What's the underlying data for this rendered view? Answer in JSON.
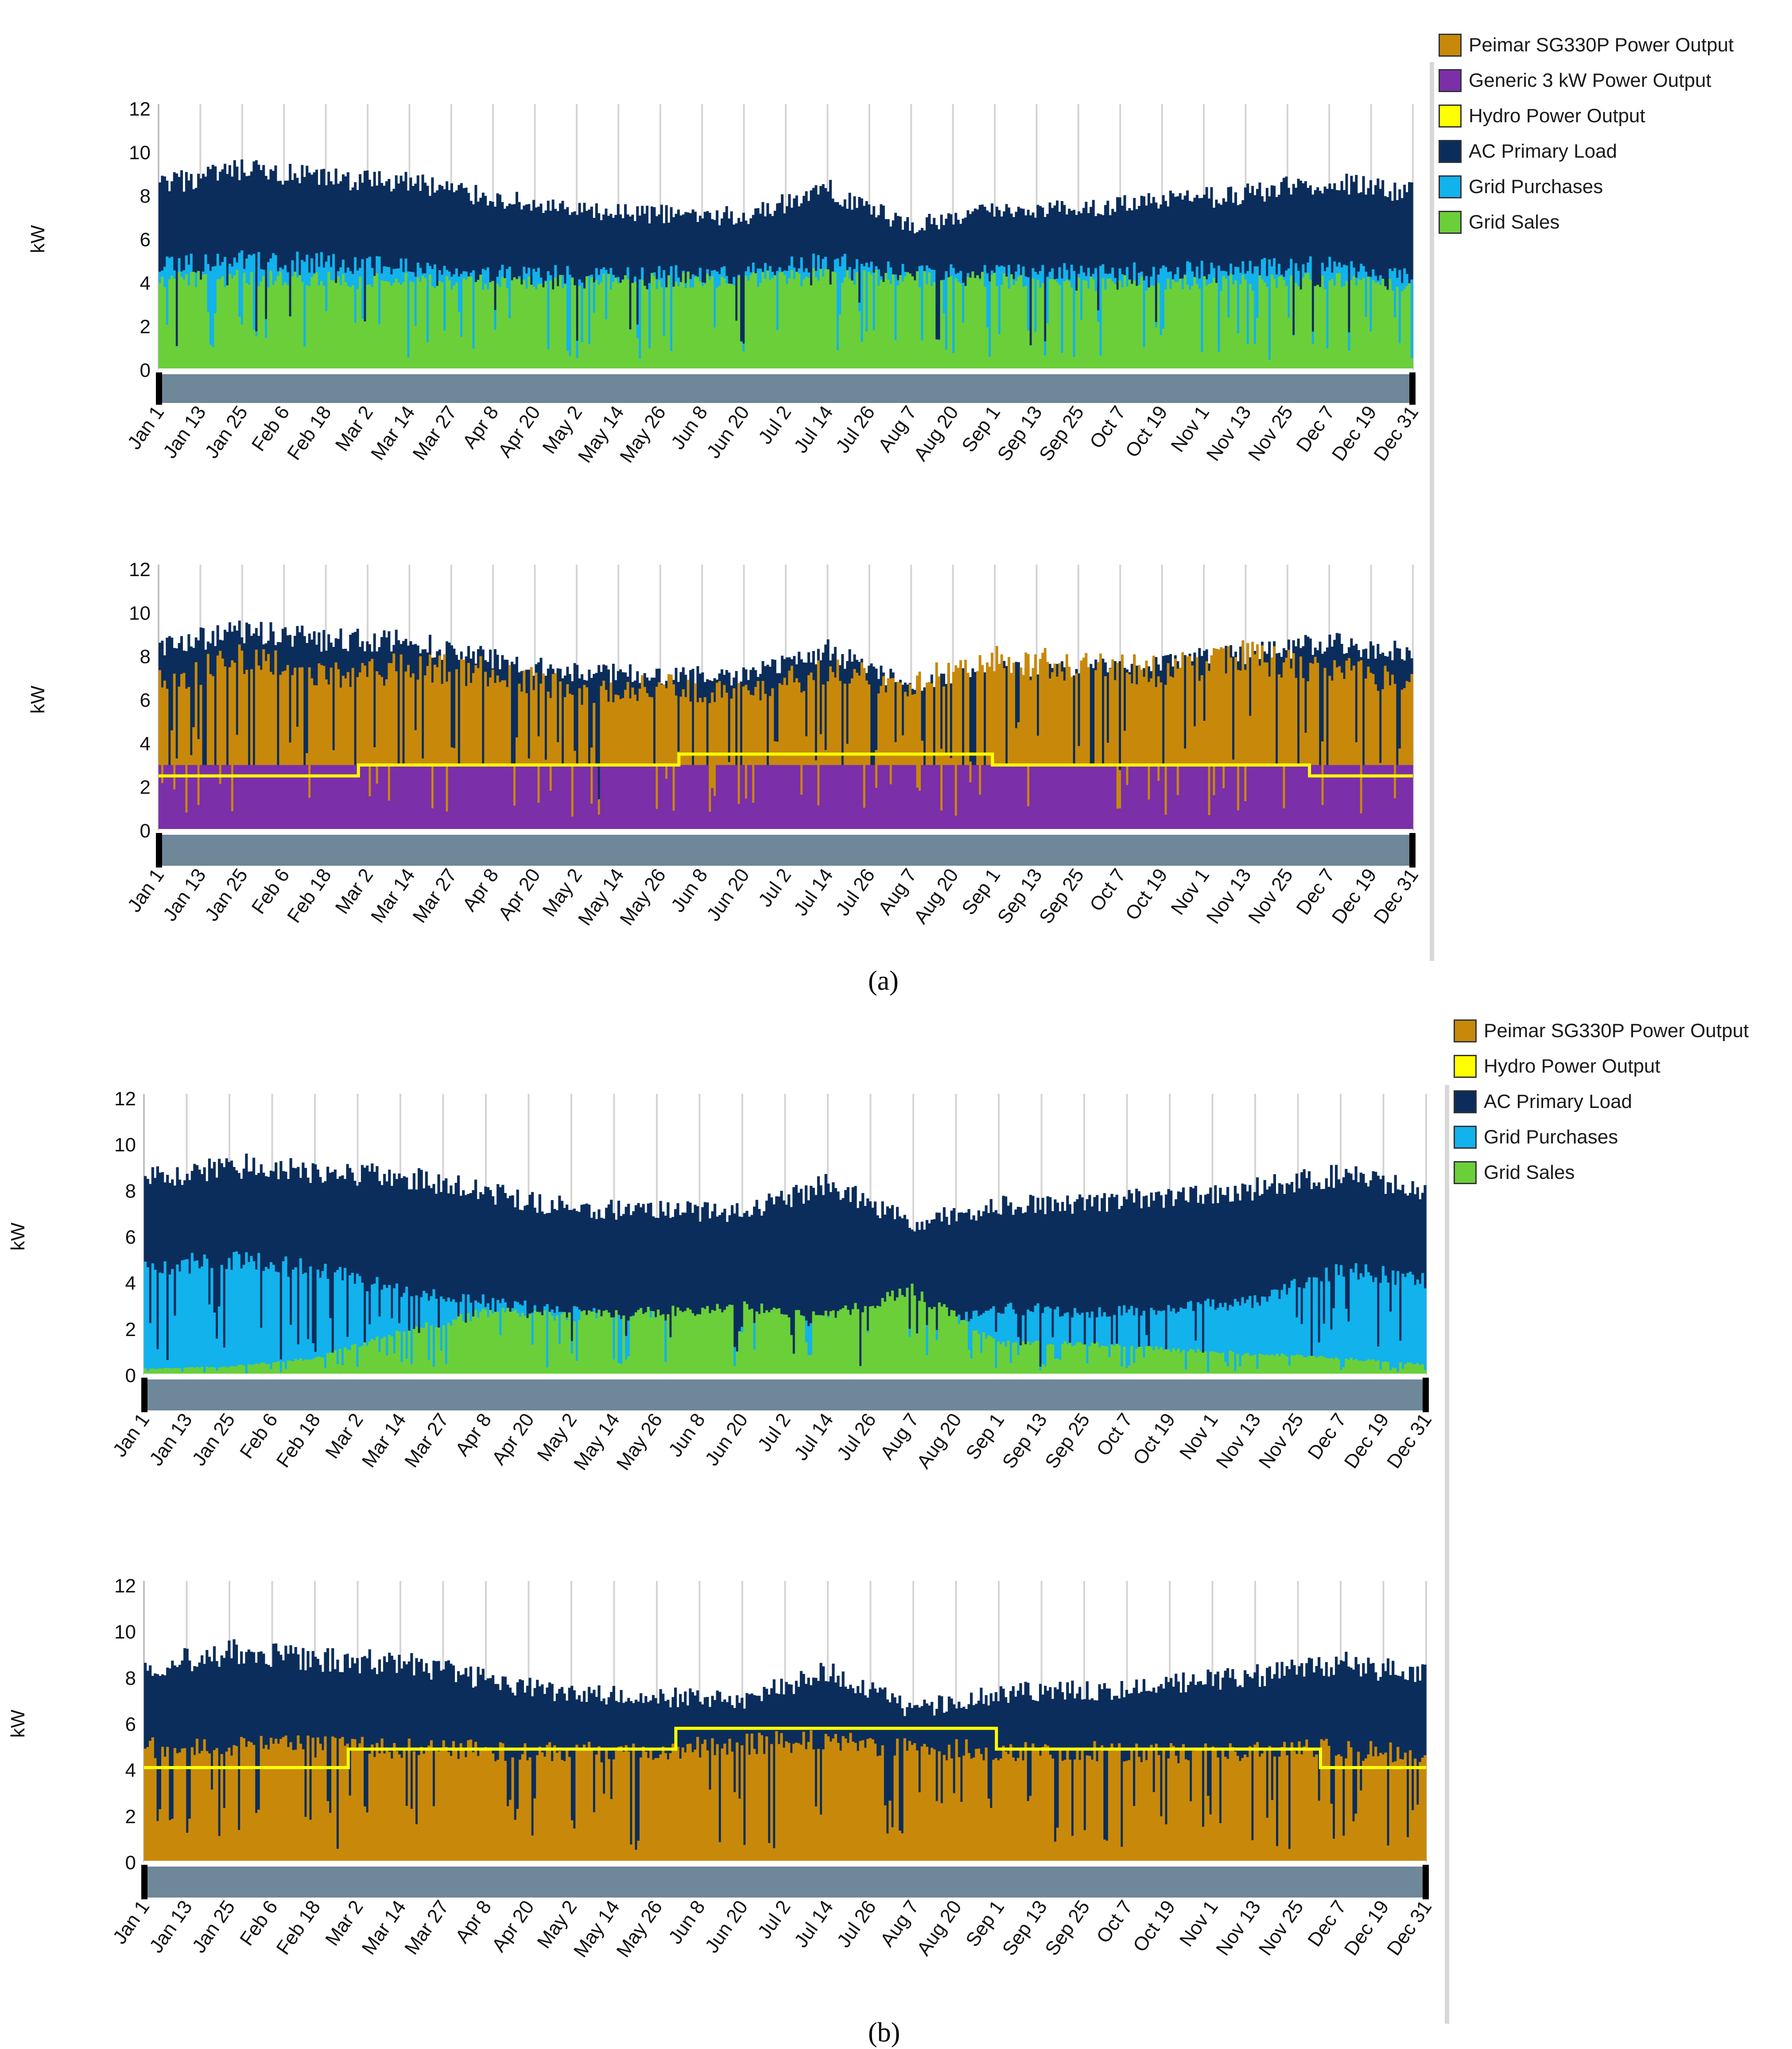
{
  "colors": {
    "pv": "#c8890a",
    "generic": "#7b2fa8",
    "hydro": "#ffff00",
    "load": "#0b2d5b",
    "purchases": "#12b2ec",
    "sales": "#6bcf3a",
    "scrollbar": "#6e8799",
    "grid": "#d4d4d4"
  },
  "panel_labels": [
    "(a)",
    "(b)"
  ],
  "legends": [
    {
      "items": [
        {
          "label": "Peimar SG330P Power Output",
          "color": "#c8890a"
        },
        {
          "label": "Generic 3 kW Power Output",
          "color": "#7b2fa8"
        },
        {
          "label": "Hydro Power Output",
          "color": "#ffff00"
        },
        {
          "label": "AC Primary Load",
          "color": "#0b2d5b"
        },
        {
          "label": "Grid Purchases",
          "color": "#12b2ec"
        },
        {
          "label": "Grid Sales",
          "color": "#6bcf3a"
        }
      ]
    },
    {
      "items": [
        {
          "label": "Peimar SG330P Power Output",
          "color": "#c8890a"
        },
        {
          "label": "Hydro Power Output",
          "color": "#ffff00"
        },
        {
          "label": "AC Primary Load",
          "color": "#0b2d5b"
        },
        {
          "label": "Grid Purchases",
          "color": "#12b2ec"
        },
        {
          "label": "Grid Sales",
          "color": "#6bcf3a"
        }
      ]
    }
  ],
  "chart_data": [
    {
      "id": "a-top",
      "type": "area",
      "ylabel": "kW",
      "ylim": [
        0,
        12
      ],
      "yticks": [
        0,
        2,
        4,
        6,
        8,
        10,
        12
      ],
      "xticks": [
        "Jan 1",
        "Jan 13",
        "Jan 25",
        "Feb 6",
        "Feb 18",
        "Mar 2",
        "Mar 14",
        "Mar 27",
        "Apr 8",
        "Apr 20",
        "May 2",
        "May 14",
        "May 26",
        "Jun 8",
        "Jun 20",
        "Jul 2",
        "Jul 14",
        "Jul 26",
        "Aug 7",
        "Aug 20",
        "Sep 1",
        "Sep 13",
        "Sep 25",
        "Oct 7",
        "Oct 19",
        "Nov 1",
        "Nov 13",
        "Nov 25",
        "Dec 7",
        "Dec 19",
        "Dec 31"
      ],
      "x": [
        "Jan 1",
        "Jan 25",
        "Feb 18",
        "Mar 14",
        "Apr 8",
        "May 2",
        "May 26",
        "Jun 20",
        "Jul 14",
        "Aug 7",
        "Sep 1",
        "Sep 25",
        "Oct 19",
        "Nov 13",
        "Dec 7",
        "Dec 31"
      ],
      "series": [
        {
          "name": "AC Primary Load",
          "values": [
            9.0,
            9.7,
            9.3,
            9.2,
            8.4,
            7.7,
            7.6,
            7.5,
            8.8,
            7.0,
            7.8,
            7.9,
            8.2,
            8.6,
            9.2,
            8.6
          ]
        },
        {
          "name": "Grid Purchases",
          "values": [
            5.4,
            5.5,
            5.4,
            5.2,
            4.9,
            4.8,
            4.8,
            4.9,
            5.5,
            4.8,
            4.9,
            4.9,
            5.0,
            5.1,
            5.3,
            4.6
          ]
        },
        {
          "name": "Grid Sales",
          "values": [
            4.6,
            4.6,
            4.5,
            4.5,
            4.4,
            4.4,
            4.5,
            4.6,
            4.7,
            4.6,
            4.5,
            4.4,
            4.4,
            4.4,
            4.5,
            4.2
          ]
        }
      ]
    },
    {
      "id": "a-bottom",
      "type": "area",
      "ylabel": "kW",
      "ylim": [
        0,
        12
      ],
      "yticks": [
        0,
        2,
        4,
        6,
        8,
        10,
        12
      ],
      "xticks": [
        "Jan 1",
        "Jan 13",
        "Jan 25",
        "Feb 6",
        "Feb 18",
        "Mar 2",
        "Mar 14",
        "Mar 27",
        "Apr 8",
        "Apr 20",
        "May 2",
        "May 14",
        "May 26",
        "Jun 8",
        "Jun 20",
        "Jul 2",
        "Jul 14",
        "Jul 26",
        "Aug 7",
        "Aug 20",
        "Sep 1",
        "Sep 13",
        "Sep 25",
        "Oct 7",
        "Oct 19",
        "Nov 1",
        "Nov 13",
        "Nov 25",
        "Dec 7",
        "Dec 19",
        "Dec 31"
      ],
      "x": [
        "Jan 1",
        "Jan 25",
        "Feb 18",
        "Mar 14",
        "Apr 8",
        "May 2",
        "May 26",
        "Jun 20",
        "Jul 14",
        "Aug 7",
        "Sep 1",
        "Sep 25",
        "Oct 19",
        "Nov 13",
        "Dec 7",
        "Dec 31"
      ],
      "series": [
        {
          "name": "AC Primary Load",
          "values": [
            9.0,
            9.7,
            9.3,
            9.2,
            8.4,
            7.7,
            7.6,
            7.5,
            8.8,
            7.0,
            7.8,
            7.9,
            8.2,
            8.6,
            9.2,
            8.6
          ]
        },
        {
          "name": "Peimar SG330P Power Output",
          "values": [
            7.5,
            8.6,
            7.8,
            8.2,
            8.0,
            7.0,
            7.2,
            7.0,
            8.0,
            7.4,
            8.5,
            8.3,
            8.0,
            8.8,
            8.1,
            7.5
          ]
        },
        {
          "name": "Generic 3 kW Power Output",
          "values": [
            3.0,
            3.0,
            3.0,
            3.0,
            3.0,
            3.0,
            3.0,
            3.0,
            3.0,
            3.0,
            3.0,
            3.0,
            3.0,
            3.0,
            3.0,
            3.0
          ]
        },
        {
          "name": "Hydro Power Output",
          "steps": [
            {
              "from": "Jan 1",
              "to": "Feb 28",
              "value": 2.5
            },
            {
              "from": "Feb 28",
              "to": "Jun 1",
              "value": 3.0
            },
            {
              "from": "Jun 1",
              "to": "Aug 31",
              "value": 3.5
            },
            {
              "from": "Aug 31",
              "to": "Dec 1",
              "value": 3.0
            },
            {
              "from": "Dec 1",
              "to": "Dec 31",
              "value": 2.5
            }
          ]
        }
      ]
    },
    {
      "id": "b-top",
      "type": "area",
      "ylabel": "kW",
      "ylim": [
        0,
        12
      ],
      "yticks": [
        0,
        2,
        4,
        6,
        8,
        10,
        12
      ],
      "xticks": [
        "Jan 1",
        "Jan 13",
        "Jan 25",
        "Feb 6",
        "Feb 18",
        "Mar 2",
        "Mar 14",
        "Mar 27",
        "Apr 8",
        "Apr 20",
        "May 2",
        "May 14",
        "May 26",
        "Jun 8",
        "Jun 20",
        "Jul 2",
        "Jul 14",
        "Jul 26",
        "Aug 7",
        "Aug 20",
        "Sep 1",
        "Sep 13",
        "Sep 25",
        "Oct 7",
        "Oct 19",
        "Nov 1",
        "Nov 13",
        "Nov 25",
        "Dec 7",
        "Dec 19",
        "Dec 31"
      ],
      "x": [
        "Jan 1",
        "Jan 25",
        "Feb 18",
        "Mar 14",
        "Apr 8",
        "May 2",
        "May 26",
        "Jun 20",
        "Jul 14",
        "Aug 7",
        "Sep 1",
        "Sep 25",
        "Oct 19",
        "Nov 13",
        "Dec 7",
        "Dec 31"
      ],
      "series": [
        {
          "name": "AC Primary Load",
          "values": [
            9.0,
            9.7,
            9.3,
            9.2,
            8.4,
            7.7,
            7.6,
            7.5,
            8.8,
            7.0,
            7.8,
            7.9,
            8.2,
            8.6,
            9.2,
            8.6
          ]
        },
        {
          "name": "Grid Purchases",
          "values": [
            5.2,
            5.5,
            5.0,
            4.0,
            3.5,
            3.0,
            2.8,
            2.5,
            2.6,
            2.0,
            3.2,
            3.0,
            3.2,
            3.5,
            5.0,
            4.5
          ]
        },
        {
          "name": "Grid Sales",
          "values": [
            0.3,
            0.4,
            0.8,
            2.0,
            3.0,
            2.8,
            3.0,
            3.2,
            2.8,
            4.0,
            1.5,
            1.5,
            1.2,
            1.0,
            0.8,
            0.5
          ]
        }
      ]
    },
    {
      "id": "b-bottom",
      "type": "area",
      "ylabel": "kW",
      "ylim": [
        0,
        12
      ],
      "yticks": [
        0,
        2,
        4,
        6,
        8,
        10,
        12
      ],
      "xticks": [
        "Jan 1",
        "Jan 13",
        "Jan 25",
        "Feb 6",
        "Feb 18",
        "Mar 2",
        "Mar 14",
        "Mar 27",
        "Apr 8",
        "Apr 20",
        "May 2",
        "May 14",
        "May 26",
        "Jun 8",
        "Jun 20",
        "Jul 2",
        "Jul 14",
        "Jul 26",
        "Aug 7",
        "Aug 20",
        "Sep 1",
        "Sep 13",
        "Sep 25",
        "Oct 7",
        "Oct 19",
        "Nov 1",
        "Nov 13",
        "Nov 25",
        "Dec 7",
        "Dec 19",
        "Dec 31"
      ],
      "x": [
        "Jan 1",
        "Jan 25",
        "Feb 18",
        "Mar 14",
        "Apr 8",
        "May 2",
        "May 26",
        "Jun 20",
        "Jul 14",
        "Aug 7",
        "Sep 1",
        "Sep 25",
        "Oct 19",
        "Nov 13",
        "Dec 7",
        "Dec 31"
      ],
      "series": [
        {
          "name": "AC Primary Load",
          "values": [
            9.0,
            9.7,
            9.3,
            9.2,
            8.4,
            7.7,
            7.6,
            7.5,
            8.8,
            7.0,
            7.8,
            7.9,
            8.2,
            8.6,
            9.2,
            8.6
          ]
        },
        {
          "name": "Peimar SG330P Power Output",
          "values": [
            5.4,
            5.6,
            5.5,
            5.4,
            5.3,
            5.2,
            5.3,
            5.6,
            5.8,
            5.4,
            5.3,
            5.3,
            5.2,
            5.3,
            5.4,
            5.2
          ]
        },
        {
          "name": "Hydro Power Output",
          "steps": [
            {
              "from": "Jan 1",
              "to": "Feb 28",
              "value": 4.1
            },
            {
              "from": "Feb 28",
              "to": "Jun 1",
              "value": 4.9
            },
            {
              "from": "Jun 1",
              "to": "Aug 31",
              "value": 5.8
            },
            {
              "from": "Aug 31",
              "to": "Dec 1",
              "value": 4.9
            },
            {
              "from": "Dec 1",
              "to": "Dec 31",
              "value": 4.1
            }
          ]
        }
      ]
    }
  ]
}
